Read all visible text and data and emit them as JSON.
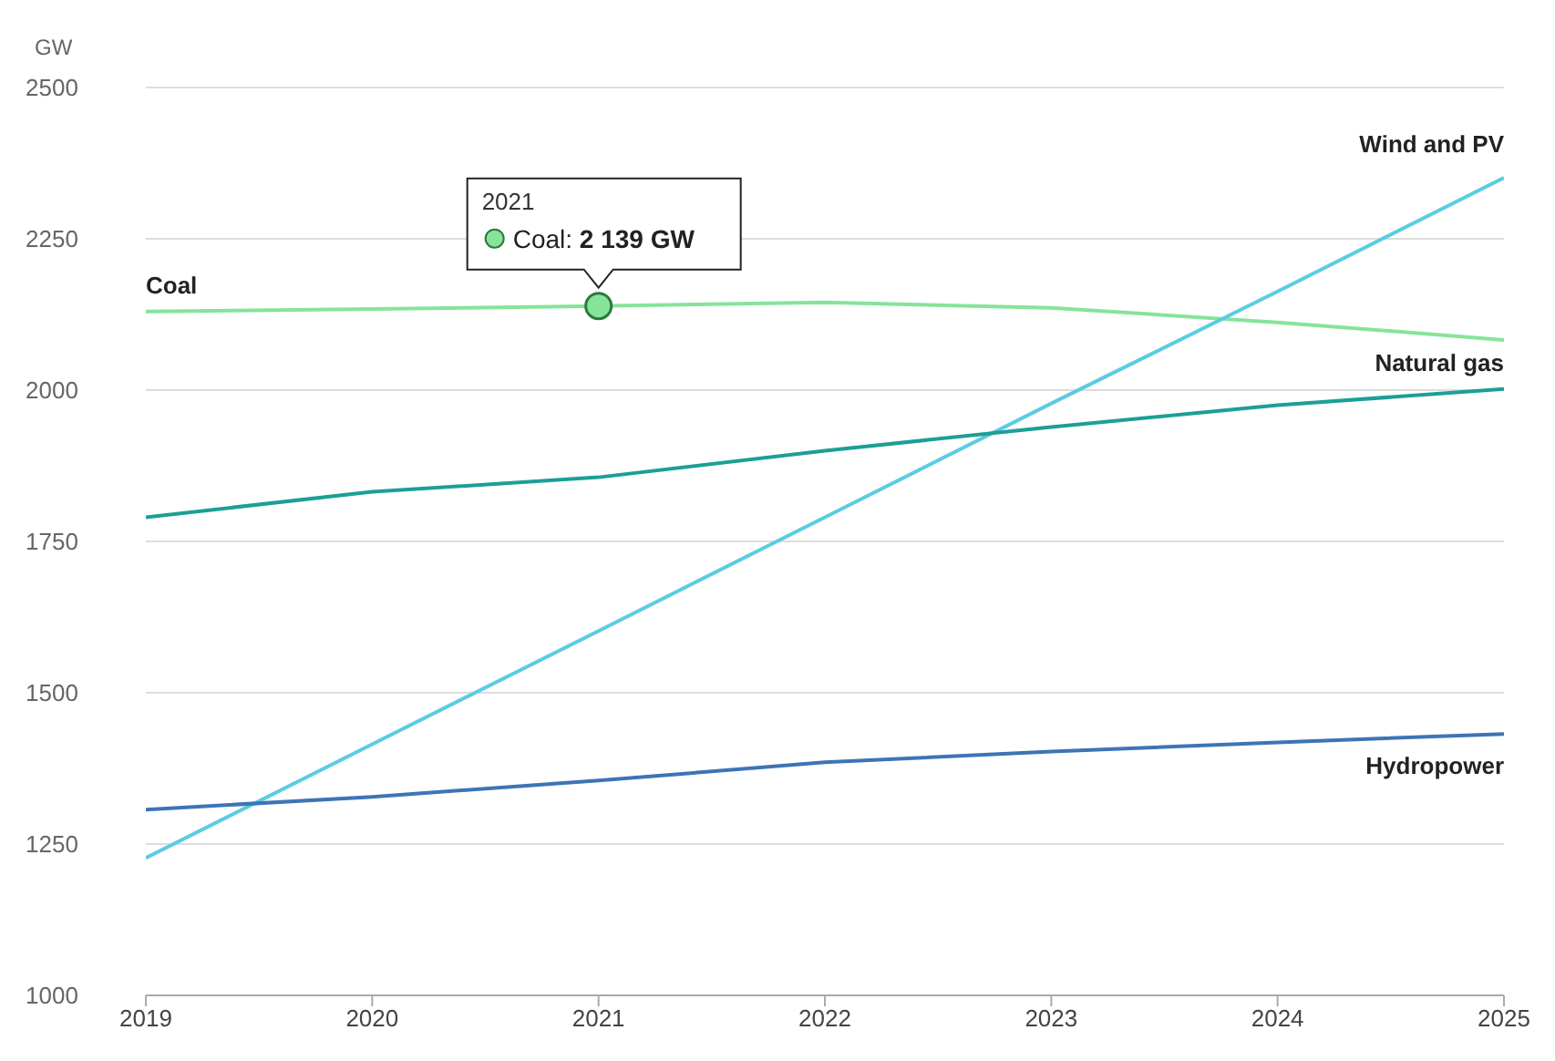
{
  "chart_data": {
    "type": "line",
    "ylabel": "GW",
    "x": [
      2019,
      2020,
      2021,
      2022,
      2023,
      2024,
      2025
    ],
    "series": [
      {
        "name": "Coal",
        "color": "#86e39a",
        "values": [
          2130,
          2134,
          2139,
          2145,
          2136,
          2112,
          2083
        ]
      },
      {
        "name": "Wind and PV",
        "color": "#5ccbe3",
        "values": [
          1227,
          1415,
          1602,
          1790,
          1978,
          2163,
          2351
        ]
      },
      {
        "name": "Natural gas",
        "color": "#1b9f98",
        "values": [
          1790,
          1832,
          1856,
          1900,
          1939,
          1975,
          2002
        ]
      },
      {
        "name": "Hydropower",
        "color": "#3d74b6",
        "values": [
          1307,
          1328,
          1355,
          1385,
          1403,
          1418,
          1432
        ]
      }
    ],
    "xlim": [
      2019,
      2025
    ],
    "xticks": [
      2019,
      2020,
      2021,
      2022,
      2023,
      2024,
      2025
    ],
    "ylim": [
      1000,
      2500
    ],
    "yticks": [
      1000,
      1250,
      1500,
      1750,
      2000,
      2250,
      2500
    ],
    "grid": "y",
    "marker": "none",
    "line_style": "solid",
    "legend": false,
    "annotations": [
      "2021",
      "Coal: 2 139 GW"
    ]
  }
}
